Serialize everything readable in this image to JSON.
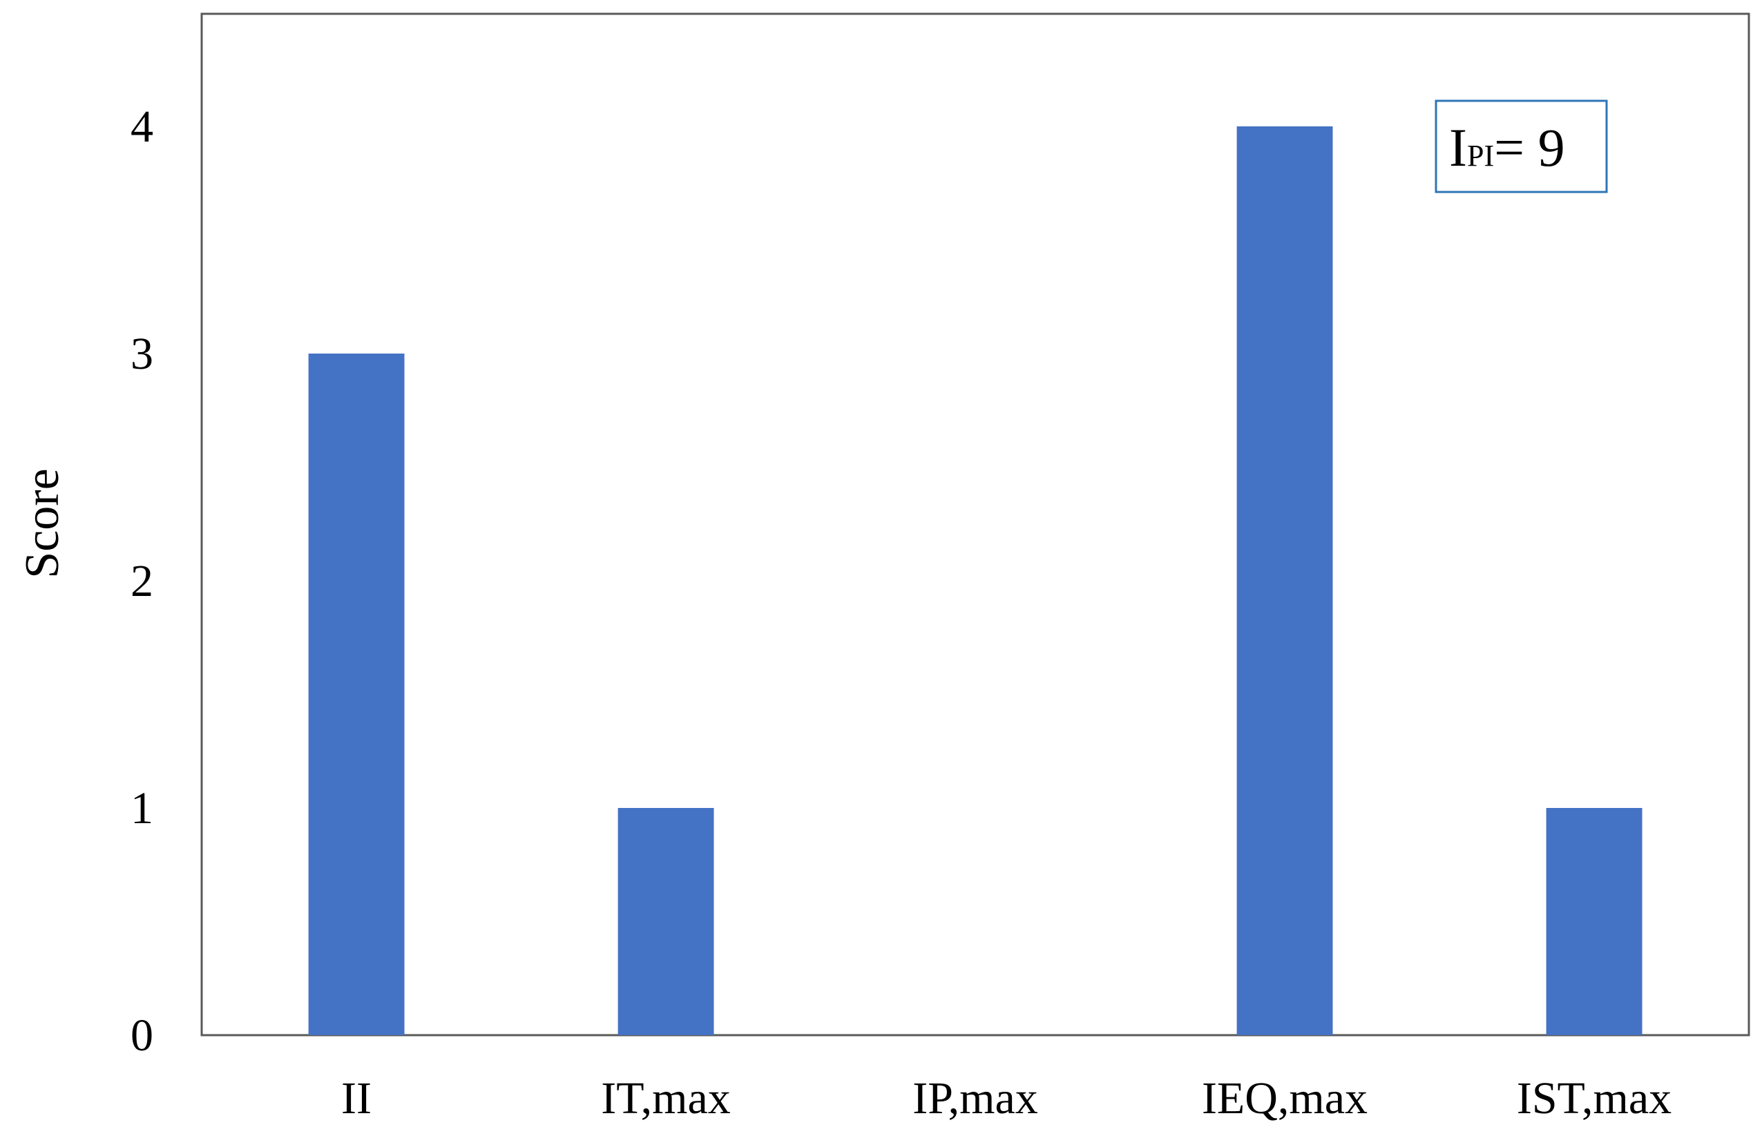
{
  "chart_data": {
    "type": "bar",
    "title": "",
    "xlabel": "",
    "ylabel": "Score",
    "categories": [
      "II",
      "IT,max",
      "IP,max",
      "IEQ,max",
      "IST,max"
    ],
    "values": [
      3,
      1,
      0,
      4,
      1
    ],
    "ylim": [
      0,
      4.5
    ],
    "yticks": [
      0,
      1,
      2,
      3,
      4
    ],
    "grid": false,
    "legend": "none",
    "bar_color": "#4472C4",
    "annotation": {
      "main": "I",
      "subscript": "PI",
      "rest": "= 9",
      "border_color": "#2E75B6",
      "placement": "top-right"
    }
  }
}
